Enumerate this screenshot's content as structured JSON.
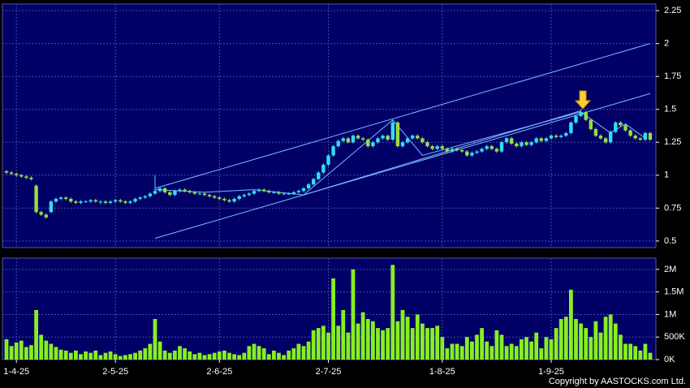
{
  "chart_data": [
    {
      "type": "candlestick",
      "up_color": "#33ddee",
      "down_color": "#99dd44",
      "trendline_color": "#7fb8ff",
      "ylim": [
        0.45,
        2.3
      ],
      "yticks": [
        0.5,
        0.75,
        1,
        1.25,
        1.5,
        1.75,
        2,
        2.25
      ],
      "grid": true,
      "open": [
        1.03,
        1.02,
        1.01,
        1.0,
        0.99,
        0.98,
        0.92,
        0.72,
        0.7,
        0.72,
        0.8,
        0.82,
        0.83,
        0.82,
        0.8,
        0.79,
        0.8,
        0.8,
        0.81,
        0.8,
        0.8,
        0.79,
        0.8,
        0.81,
        0.8,
        0.79,
        0.8,
        0.82,
        0.83,
        0.84,
        0.86,
        0.88,
        0.9,
        0.87,
        0.85,
        0.88,
        0.89,
        0.88,
        0.87,
        0.86,
        0.86,
        0.85,
        0.84,
        0.83,
        0.82,
        0.81,
        0.8,
        0.82,
        0.84,
        0.85,
        0.86,
        0.88,
        0.89,
        0.88,
        0.87,
        0.87,
        0.86,
        0.86,
        0.86,
        0.87,
        0.88,
        0.9,
        0.93,
        0.97,
        1.02,
        1.08,
        1.15,
        1.22,
        1.26,
        1.28,
        1.25,
        1.3,
        1.28,
        1.27,
        1.22,
        1.25,
        1.28,
        1.3,
        1.27,
        1.4,
        1.22,
        1.25,
        1.28,
        1.3,
        1.28,
        1.25,
        1.22,
        1.2,
        1.22,
        1.2,
        1.18,
        1.2,
        1.19,
        1.18,
        1.15,
        1.17,
        1.18,
        1.2,
        1.22,
        1.2,
        1.18,
        1.25,
        1.28,
        1.24,
        1.22,
        1.25,
        1.23,
        1.25,
        1.28,
        1.26,
        1.28,
        1.3,
        1.29,
        1.3,
        1.32,
        1.4,
        1.45,
        1.48,
        1.42,
        1.35,
        1.3,
        1.28,
        1.25,
        1.33,
        1.4,
        1.38,
        1.34,
        1.3,
        1.28,
        1.27,
        1.32
      ],
      "high": [
        1.04,
        1.03,
        1.02,
        1.01,
        1.0,
        0.99,
        0.93,
        0.73,
        0.71,
        0.81,
        0.83,
        0.84,
        0.84,
        0.83,
        0.81,
        0.81,
        0.81,
        0.82,
        0.82,
        0.81,
        0.81,
        0.81,
        0.82,
        0.82,
        0.81,
        0.81,
        0.83,
        0.84,
        0.85,
        0.87,
        1.0,
        0.91,
        0.91,
        0.88,
        0.89,
        0.9,
        0.9,
        0.89,
        0.88,
        0.87,
        0.87,
        0.86,
        0.85,
        0.84,
        0.83,
        0.82,
        0.83,
        0.85,
        0.86,
        0.87,
        0.89,
        0.9,
        0.9,
        0.89,
        0.88,
        0.88,
        0.87,
        0.87,
        0.88,
        0.89,
        0.91,
        0.94,
        0.98,
        1.03,
        1.09,
        1.16,
        1.23,
        1.27,
        1.29,
        1.29,
        1.31,
        1.31,
        1.29,
        1.28,
        1.26,
        1.29,
        1.31,
        1.31,
        1.42,
        1.41,
        1.26,
        1.29,
        1.31,
        1.31,
        1.29,
        1.26,
        1.23,
        1.23,
        1.23,
        1.21,
        1.21,
        1.21,
        1.2,
        1.19,
        1.18,
        1.19,
        1.21,
        1.23,
        1.23,
        1.21,
        1.26,
        1.29,
        1.29,
        1.25,
        1.26,
        1.26,
        1.26,
        1.29,
        1.29,
        1.29,
        1.31,
        1.31,
        1.31,
        1.33,
        1.41,
        1.46,
        1.5,
        1.49,
        1.43,
        1.36,
        1.31,
        1.29,
        1.34,
        1.41,
        1.41,
        1.39,
        1.35,
        1.31,
        1.29,
        1.33,
        1.33
      ],
      "low": [
        1.01,
        1.0,
        0.99,
        0.98,
        0.97,
        0.96,
        0.71,
        0.69,
        0.67,
        0.71,
        0.79,
        0.81,
        0.81,
        0.79,
        0.78,
        0.78,
        0.79,
        0.79,
        0.79,
        0.78,
        0.78,
        0.78,
        0.79,
        0.79,
        0.78,
        0.78,
        0.79,
        0.81,
        0.82,
        0.83,
        0.85,
        0.87,
        0.86,
        0.84,
        0.84,
        0.87,
        0.87,
        0.86,
        0.85,
        0.85,
        0.84,
        0.83,
        0.82,
        0.81,
        0.8,
        0.79,
        0.79,
        0.81,
        0.83,
        0.84,
        0.85,
        0.87,
        0.87,
        0.86,
        0.86,
        0.85,
        0.85,
        0.85,
        0.85,
        0.86,
        0.87,
        0.89,
        0.92,
        0.96,
        1.01,
        1.07,
        1.14,
        1.21,
        1.25,
        1.24,
        1.24,
        1.27,
        1.26,
        1.21,
        1.21,
        1.24,
        1.27,
        1.26,
        1.26,
        1.21,
        1.21,
        1.24,
        1.27,
        1.27,
        1.24,
        1.21,
        1.19,
        1.19,
        1.19,
        1.17,
        1.17,
        1.18,
        1.17,
        1.14,
        1.14,
        1.16,
        1.17,
        1.19,
        1.19,
        1.17,
        1.17,
        1.24,
        1.23,
        1.21,
        1.21,
        1.22,
        1.22,
        1.24,
        1.25,
        1.25,
        1.27,
        1.28,
        1.28,
        1.29,
        1.31,
        1.39,
        1.44,
        1.41,
        1.34,
        1.29,
        1.27,
        1.24,
        1.24,
        1.32,
        1.37,
        1.33,
        1.29,
        1.27,
        1.26,
        1.26,
        1.26
      ],
      "close": [
        1.02,
        1.01,
        1.0,
        0.99,
        0.98,
        0.97,
        0.72,
        0.7,
        0.68,
        0.8,
        0.82,
        0.83,
        0.82,
        0.8,
        0.79,
        0.8,
        0.8,
        0.81,
        0.8,
        0.8,
        0.79,
        0.8,
        0.81,
        0.8,
        0.79,
        0.8,
        0.82,
        0.83,
        0.84,
        0.86,
        0.88,
        0.9,
        0.87,
        0.85,
        0.88,
        0.89,
        0.88,
        0.87,
        0.86,
        0.86,
        0.85,
        0.84,
        0.83,
        0.82,
        0.81,
        0.8,
        0.82,
        0.84,
        0.85,
        0.86,
        0.88,
        0.89,
        0.88,
        0.87,
        0.87,
        0.86,
        0.86,
        0.86,
        0.87,
        0.88,
        0.9,
        0.93,
        0.97,
        1.02,
        1.08,
        1.15,
        1.22,
        1.26,
        1.28,
        1.25,
        1.3,
        1.28,
        1.27,
        1.22,
        1.25,
        1.28,
        1.3,
        1.27,
        1.4,
        1.22,
        1.25,
        1.28,
        1.3,
        1.28,
        1.25,
        1.22,
        1.2,
        1.22,
        1.2,
        1.18,
        1.2,
        1.19,
        1.18,
        1.15,
        1.17,
        1.18,
        1.2,
        1.22,
        1.2,
        1.18,
        1.25,
        1.28,
        1.24,
        1.22,
        1.25,
        1.23,
        1.25,
        1.28,
        1.26,
        1.28,
        1.3,
        1.29,
        1.3,
        1.32,
        1.4,
        1.45,
        1.48,
        1.42,
        1.35,
        1.3,
        1.28,
        1.25,
        1.33,
        1.4,
        1.38,
        1.34,
        1.3,
        1.28,
        1.27,
        1.32,
        1.27
      ],
      "trendlines": [
        {
          "x": [
            30,
            130
          ],
          "y": [
            0.9,
            2.0
          ]
        },
        {
          "x": [
            30,
            130
          ],
          "y": [
            0.52,
            1.62
          ]
        },
        {
          "x": [
            60,
            116
          ],
          "y": [
            0.85,
            1.49
          ]
        },
        {
          "x": [
            30,
            40,
            50,
            60,
            78,
            84,
            116,
            122,
            125,
            129
          ],
          "y": [
            0.89,
            0.87,
            0.89,
            0.85,
            1.42,
            1.15,
            1.48,
            1.32,
            1.39,
            1.28
          ]
        }
      ]
    },
    {
      "type": "bar",
      "color": "#88ee22",
      "categories": [
        null,
        null,
        "1-4-25",
        null,
        null,
        null,
        null,
        null,
        null,
        null,
        null,
        null,
        null,
        null,
        null,
        null,
        null,
        null,
        null,
        null,
        null,
        null,
        "2-5-25",
        null,
        null,
        null,
        null,
        null,
        null,
        null,
        null,
        null,
        null,
        null,
        null,
        null,
        null,
        null,
        null,
        null,
        null,
        null,
        null,
        "2-6-25",
        null,
        null,
        null,
        null,
        null,
        null,
        null,
        null,
        null,
        null,
        null,
        null,
        null,
        null,
        null,
        null,
        null,
        null,
        null,
        null,
        null,
        "2-7-25",
        null,
        null,
        null,
        null,
        null,
        null,
        null,
        null,
        null,
        null,
        null,
        null,
        null,
        null,
        null,
        null,
        null,
        null,
        null,
        null,
        null,
        null,
        "1-8-25",
        null,
        null,
        null,
        null,
        null,
        null,
        null,
        null,
        null,
        null,
        null,
        null,
        null,
        null,
        null,
        null,
        null,
        null,
        null,
        null,
        null,
        "1-9-25",
        null,
        null,
        null,
        null,
        null,
        null,
        null,
        null,
        null,
        null,
        null,
        null,
        null,
        null,
        null,
        null,
        null,
        null,
        null,
        null
      ],
      "values": [
        450000,
        300000,
        380000,
        420000,
        280000,
        320000,
        1100000,
        550000,
        420000,
        350000,
        280000,
        220000,
        200000,
        150000,
        200000,
        120000,
        180000,
        150000,
        200000,
        100000,
        150000,
        180000,
        120000,
        80000,
        100000,
        120000,
        150000,
        200000,
        250000,
        350000,
        900000,
        400000,
        200000,
        150000,
        200000,
        300000,
        250000,
        180000,
        120000,
        150000,
        100000,
        120000,
        150000,
        180000,
        200000,
        150000,
        120000,
        100000,
        150000,
        300000,
        350000,
        300000,
        250000,
        120000,
        200000,
        150000,
        100000,
        200000,
        250000,
        350000,
        300000,
        400000,
        650000,
        700000,
        750000,
        600000,
        1800000,
        750000,
        1100000,
        600000,
        2000000,
        800000,
        1050000,
        900000,
        850000,
        700000,
        650000,
        700000,
        2100000,
        850000,
        1100000,
        950000,
        700000,
        1000000,
        800000,
        700000,
        700000,
        750000,
        500000,
        250000,
        350000,
        350000,
        300000,
        500000,
        400000,
        550000,
        700000,
        400000,
        300000,
        650000,
        550000,
        300000,
        350000,
        300000,
        450000,
        500000,
        400000,
        600000,
        250000,
        500000,
        450000,
        700000,
        900000,
        950000,
        1550000,
        900000,
        800000,
        700000,
        500000,
        850000,
        600000,
        950000,
        1000000,
        800000,
        550000,
        350000,
        350000,
        300000,
        200000,
        350000,
        150000
      ],
      "ylim": [
        0,
        2250000
      ],
      "yticks": [
        {
          "value": 0,
          "label": "0K"
        },
        {
          "value": 500000,
          "label": "500K"
        },
        {
          "value": 1000000,
          "label": "1M"
        },
        {
          "value": 1500000,
          "label": "1.5M"
        },
        {
          "value": 2000000,
          "label": "2M"
        }
      ],
      "grid": true
    }
  ],
  "footer": {
    "copyright": "Copyright by AASTOCKS.com Ltd."
  }
}
